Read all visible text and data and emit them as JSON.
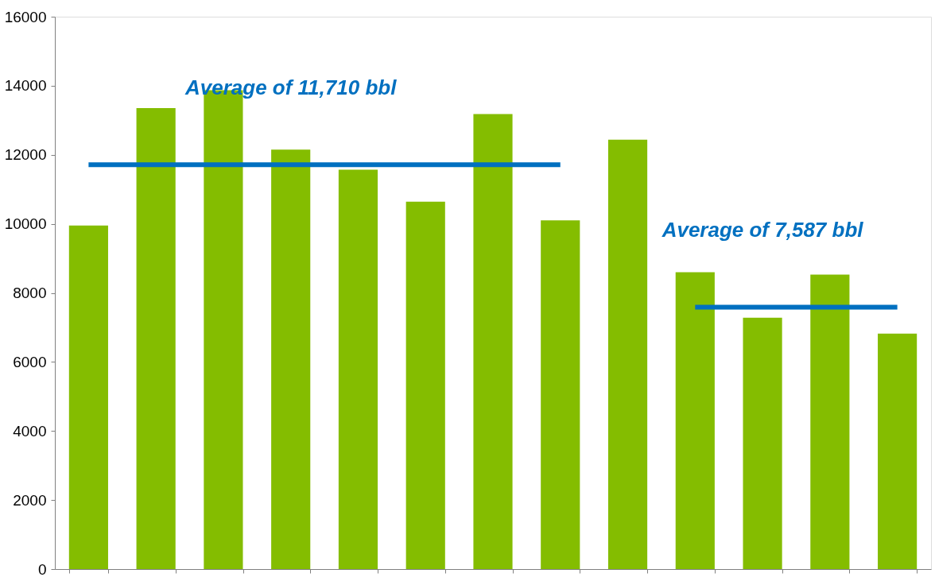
{
  "chart_data": {
    "type": "bar",
    "categories": [
      null,
      null,
      null,
      null,
      null,
      null,
      null,
      null,
      null,
      null,
      null,
      null,
      null
    ],
    "series": [
      {
        "color": "#84bd00",
        "values": [
          9950,
          13350,
          13870,
          12150,
          11570,
          10640,
          13180,
          10100,
          12440,
          8600,
          7280,
          8530,
          6820
        ]
      },
      {
        "type": "line",
        "color": "#0070c0",
        "values": [
          11710,
          11710,
          11710,
          11710,
          11710,
          11710,
          11710,
          11710,
          null,
          null,
          null,
          null,
          null
        ]
      },
      {
        "type": "line",
        "color": "#0070c0",
        "values": [
          null,
          null,
          null,
          null,
          null,
          null,
          null,
          null,
          null,
          7587,
          7587,
          7587,
          7587
        ]
      }
    ],
    "annotations": [
      "Average of 11,710 bbl",
      "Average of 7,587 bbl"
    ],
    "ylim": [
      0,
      16000
    ],
    "yticks": [
      0,
      2000,
      4000,
      6000,
      8000,
      10000,
      12000,
      14000,
      16000
    ],
    "tick_labels": "y",
    "grid": false
  }
}
